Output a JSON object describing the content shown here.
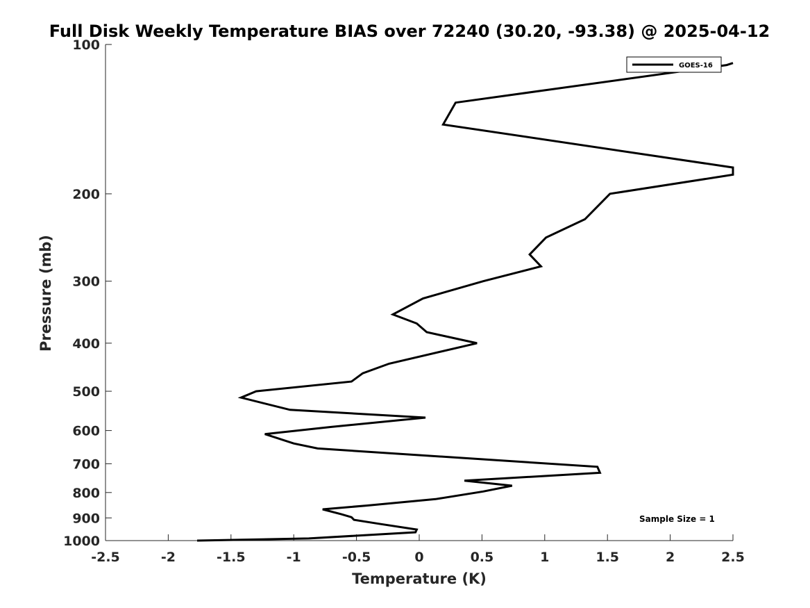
{
  "chart_data": {
    "type": "line",
    "title": "Full Disk Weekly Temperature BIAS over 72240 (30.20, -93.38) @ 2025-04-12",
    "xlabel": "Temperature (K)",
    "ylabel": "Pressure (mb)",
    "xlim": [
      -2.5,
      2.5
    ],
    "ylim": [
      1000,
      100
    ],
    "y_scale": "log",
    "y_inverted": true,
    "grid": false,
    "x_ticks": [
      -2.5,
      -2,
      -1.5,
      -1,
      -0.5,
      0,
      0.5,
      1,
      1.5,
      2,
      2.5
    ],
    "x_tick_labels": [
      "-2.5",
      "-2",
      "-1.5",
      "-1",
      "-0.5",
      "0",
      "0.5",
      "1",
      "1.5",
      "2",
      "2.5"
    ],
    "y_ticks": [
      100,
      200,
      300,
      400,
      500,
      600,
      700,
      800,
      900,
      1000
    ],
    "y_tick_labels": [
      "100",
      "200",
      "300",
      "400",
      "500",
      "600",
      "700",
      "800",
      "900",
      "1000"
    ],
    "legend": {
      "placement": "top-right",
      "entries": [
        "GOES-16"
      ]
    },
    "annotation": "Sample Size = 1",
    "series": [
      {
        "name": "GOES-16",
        "color": "#000000",
        "points": [
          [
            -1.77,
            1000
          ],
          [
            -0.88,
            990
          ],
          [
            -0.03,
            962
          ],
          [
            -0.02,
            950
          ],
          [
            -0.32,
            925
          ],
          [
            -0.52,
            908
          ],
          [
            -0.54,
            897
          ],
          [
            -0.62,
            885
          ],
          [
            -0.77,
            865
          ],
          [
            -0.42,
            850
          ],
          [
            0.13,
            825
          ],
          [
            0.51,
            796
          ],
          [
            0.74,
            775
          ],
          [
            0.36,
            757
          ],
          [
            1.44,
            730
          ],
          [
            1.42,
            710
          ],
          [
            -0.81,
            652
          ],
          [
            -1.0,
            637
          ],
          [
            -1.23,
            610
          ],
          [
            -0.7,
            590
          ],
          [
            0.05,
            565
          ],
          [
            -1.03,
            545
          ],
          [
            -1.42,
            515
          ],
          [
            -1.3,
            500
          ],
          [
            -0.54,
            478
          ],
          [
            -0.45,
            460
          ],
          [
            -0.24,
            440
          ],
          [
            0.46,
            400
          ],
          [
            0.06,
            380
          ],
          [
            -0.02,
            365
          ],
          [
            -0.21,
            350
          ],
          [
            0.03,
            325
          ],
          [
            0.51,
            300
          ],
          [
            0.97,
            280
          ],
          [
            0.88,
            265
          ],
          [
            1.01,
            245
          ],
          [
            1.32,
            225
          ],
          [
            1.52,
            200
          ],
          [
            2.5,
            183
          ],
          [
            2.5,
            177
          ],
          [
            0.19,
            145
          ],
          [
            0.29,
            131
          ],
          [
            2.45,
            110
          ],
          [
            2.5,
            109
          ]
        ]
      }
    ]
  }
}
